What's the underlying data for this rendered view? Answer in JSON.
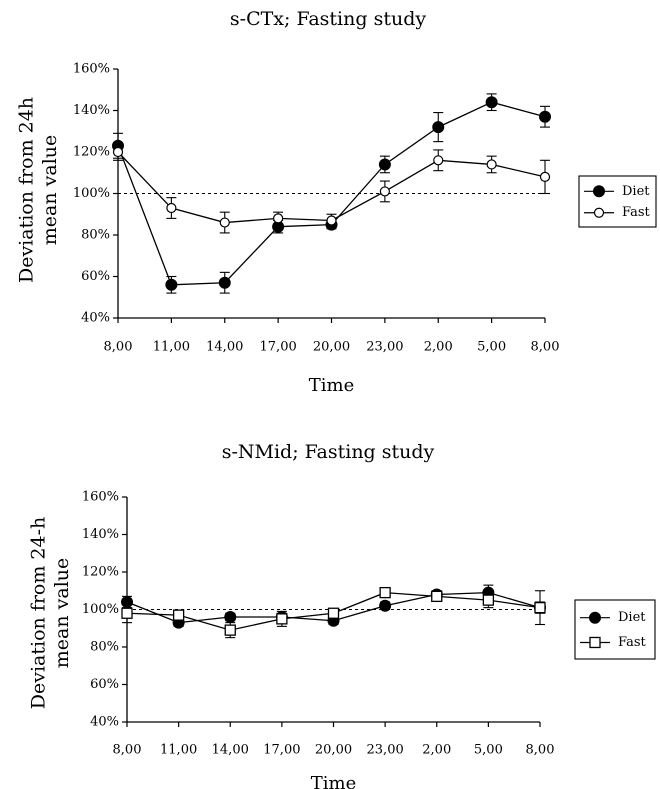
{
  "chart_data": [
    {
      "type": "line",
      "title": "s-CTx; Fasting study",
      "xlabel": "Time",
      "ylabel": [
        "Deviation from 24h",
        "mean value"
      ],
      "categories": [
        "8,00",
        "11,00",
        "14,00",
        "17,00",
        "20,00",
        "23,00",
        "2,00",
        "5,00",
        "8,00"
      ],
      "ylim": [
        40,
        160
      ],
      "yticks": [
        40,
        60,
        80,
        100,
        120,
        140,
        160
      ],
      "ytick_labels": [
        "40%",
        "60%",
        "80%",
        "100%",
        "120%",
        "140%",
        "160%"
      ],
      "reference_line": 100,
      "legend_position": "right",
      "series": [
        {
          "name": "Diet",
          "marker": "filled-circle",
          "values": [
            123,
            56,
            57,
            84,
            85,
            114,
            132,
            144,
            137
          ],
          "errors": [
            6,
            4,
            5,
            3,
            2,
            4,
            7,
            4,
            5
          ]
        },
        {
          "name": "Fast",
          "marker": "open-circle",
          "values": [
            120,
            93,
            86,
            88,
            87,
            101,
            116,
            114,
            108
          ],
          "errors": [
            4,
            5,
            5,
            3,
            3,
            5,
            5,
            4,
            8
          ]
        }
      ]
    },
    {
      "type": "line",
      "title": "s-NMid; Fasting study",
      "xlabel": "Time",
      "ylabel": [
        "Deviation from 24-h",
        "mean value"
      ],
      "categories": [
        "8,00",
        "11,00",
        "14,00",
        "17,00",
        "20,00",
        "23,00",
        "2,00",
        "5,00",
        "8,00"
      ],
      "ylim": [
        40,
        160
      ],
      "yticks": [
        40,
        60,
        80,
        100,
        120,
        140,
        160
      ],
      "ytick_labels": [
        "40%",
        "60%",
        "80%",
        "100%",
        "120%",
        "140%",
        "160%"
      ],
      "reference_line": 100,
      "legend_position": "right",
      "series": [
        {
          "name": "Diet",
          "marker": "filled-circle",
          "values": [
            104,
            93,
            96,
            96,
            94,
            102,
            108,
            109,
            101
          ],
          "errors": [
            3,
            2,
            2,
            2,
            2,
            2,
            2,
            4,
            3
          ]
        },
        {
          "name": "Fast",
          "marker": "open-square",
          "values": [
            98,
            97,
            89,
            95,
            98,
            109,
            107,
            105,
            101
          ],
          "errors": [
            5,
            2,
            4,
            4,
            2,
            2,
            2,
            4,
            9
          ]
        }
      ]
    }
  ]
}
